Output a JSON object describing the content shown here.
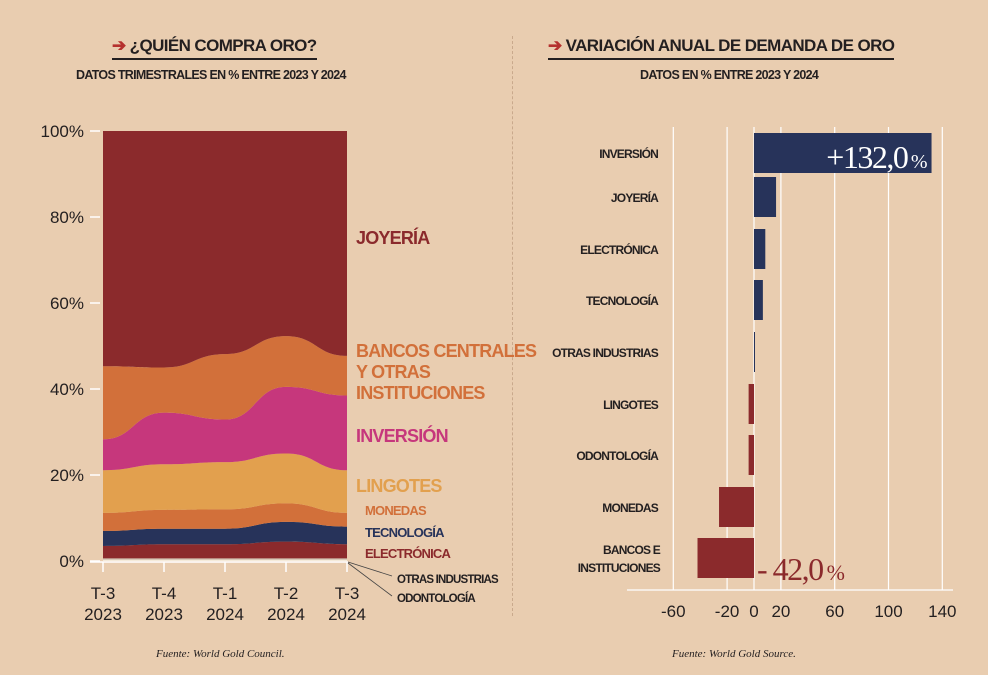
{
  "left": {
    "title": "¿QUIÉN COMPRA ORO?",
    "subtitle": "DATOS TRIMESTRALES EN % ENTRE 2023 Y 2024",
    "source": "Fuente: World Gold Council."
  },
  "right": {
    "title": "VARIACIÓN ANUAL DE DEMANDA DE ORO",
    "subtitle": "DATOS EN % ENTRE 2023 Y 2024",
    "source": "Fuente: World Gold Source."
  },
  "chart_data": [
    {
      "type": "area",
      "stacked": true,
      "title": "¿QUIÉN COMPRA ORO?",
      "subtitle": "DATOS TRIMESTRALES EN % ENTRE 2023 Y 2024",
      "categories": [
        [
          "T-3",
          "2023"
        ],
        [
          "T-4",
          "2023"
        ],
        [
          "T-1",
          "2024"
        ],
        [
          "T-2",
          "2024"
        ],
        [
          "T-3",
          "2024"
        ]
      ],
      "ylim": [
        0,
        100
      ],
      "yticks": [
        "0%",
        "20%",
        "40%",
        "60%",
        "80%",
        "100%"
      ],
      "series": [
        {
          "name": "ODONTOLOGÍA",
          "color": "#f4ead9",
          "values": [
            0.3,
            0.3,
            0.3,
            0.3,
            0.3
          ]
        },
        {
          "name": "OTRAS INDUSTRIAS",
          "color": "#cfc2b4",
          "values": [
            0.3,
            0.3,
            0.3,
            0.3,
            0.3
          ]
        },
        {
          "name": "ELECTRÓNICA",
          "color": "#8b2a2c",
          "values": [
            2.9,
            3.3,
            3.3,
            3.9,
            3.3
          ]
        },
        {
          "name": "TECNOLOGÍA",
          "color": "#27335a",
          "values": [
            3.5,
            3.6,
            3.6,
            4.6,
            4.1
          ]
        },
        {
          "name": "MONEDAS",
          "color": "#d2703a",
          "values": [
            4.2,
            4.4,
            4.5,
            4.3,
            3.2
          ]
        },
        {
          "name": "LINGOTES",
          "color": "#e2a04e",
          "values": [
            9.9,
            10.6,
            11.0,
            11.6,
            9.9
          ]
        },
        {
          "name": "INVERSIÓN",
          "color": "#c6377c",
          "values": [
            7.2,
            12.0,
            9.9,
            15.5,
            17.4
          ]
        },
        {
          "name": "BANCOS CENTRALES Y OTRAS INSTITUCIONES",
          "color": "#d2703a",
          "values": [
            17.0,
            10.5,
            15.2,
            11.8,
            9.2
          ]
        },
        {
          "name": "JOYERÍA",
          "color": "#8b2a2c",
          "values": [
            54.7,
            55.0,
            51.9,
            47.7,
            52.3
          ]
        }
      ],
      "labels": {
        "joyeria": "JOYERÍA",
        "bancos": [
          "BANCOS CENTRALES",
          "Y OTRAS",
          "INSTITUCIONES"
        ],
        "inversion": "INVERSIÓN",
        "lingotes": "LINGOTES",
        "monedas": "MONEDAS",
        "tecnologia": "TECNOLOGÍA",
        "electronica": "ELECTRÓNICA",
        "otras": "OTRAS INDUSTRIAS",
        "odontologia": "ODONTOLOGÍA"
      }
    },
    {
      "type": "bar",
      "orientation": "horizontal",
      "title": "VARIACIÓN ANUAL DE DEMANDA DE ORO",
      "subtitle": "DATOS EN % ENTRE 2023 Y 2024",
      "categories": [
        "INVERSIÓN",
        "JOYERÍA",
        "ELECTRÓNICA",
        "TECNOLOGÍA",
        "OTRAS INDUSTRIAS",
        "LINGOTES",
        "ODONTOLOGÍA",
        "MONEDAS",
        [
          "BANCOS E",
          "INSTITUCIONES"
        ]
      ],
      "values": [
        132.0,
        16.4,
        8.4,
        6.6,
        0.5,
        -4.0,
        -4.0,
        -26.0,
        -42.0
      ],
      "xlim": [
        -70,
        150
      ],
      "xticks": [
        -60,
        -20,
        0,
        20,
        60,
        100,
        140
      ],
      "positive_color": "#27335a",
      "negative_color": "#8b2a2c",
      "annotations": {
        "max": "+132,0",
        "min": "- 42,0",
        "unit": "%"
      }
    }
  ]
}
